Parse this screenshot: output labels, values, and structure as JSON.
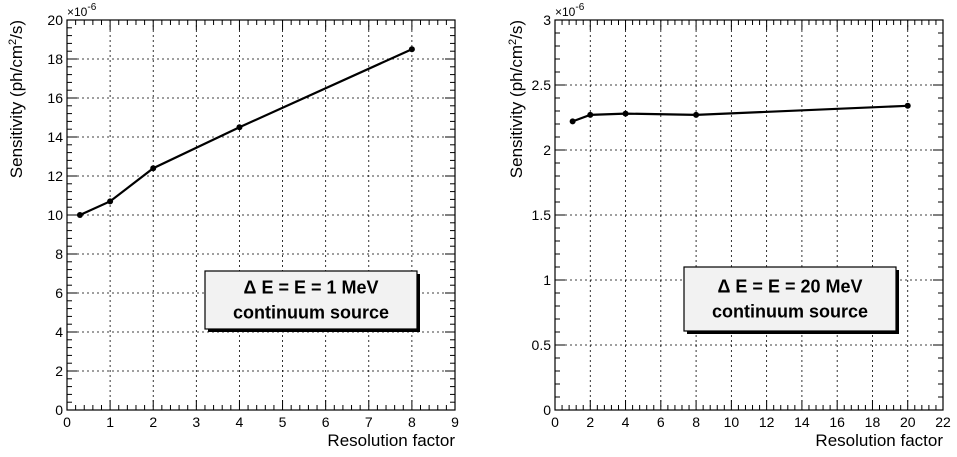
{
  "chart_data": [
    {
      "type": "line",
      "title": "",
      "xlabel": "Resolution factor",
      "ylabel_parts": [
        "Sensitivity (ph/cm",
        "2",
        "/s)"
      ],
      "y_multiplier": [
        "×10",
        "-6"
      ],
      "xlim": [
        0,
        9
      ],
      "ylim": [
        0,
        20
      ],
      "x_ticks": [
        0,
        1,
        2,
        3,
        4,
        5,
        6,
        7,
        8,
        9
      ],
      "y_ticks": [
        0,
        2,
        4,
        6,
        8,
        10,
        12,
        14,
        16,
        18,
        20
      ],
      "grid": true,
      "series": [
        {
          "x": [
            0.3,
            1,
            2,
            4,
            8
          ],
          "y": [
            10.0,
            10.7,
            12.4,
            14.5,
            18.5
          ]
        }
      ],
      "annotation": {
        "lines": [
          "Δ E = E = 1 MeV",
          "continuum source"
        ]
      }
    },
    {
      "type": "line",
      "title": "",
      "xlabel": "Resolution factor",
      "ylabel_parts": [
        "Sensitivity (ph/cm",
        "2",
        "/s)"
      ],
      "y_multiplier": [
        "×10",
        "-6"
      ],
      "xlim": [
        0,
        22
      ],
      "ylim": [
        0,
        3
      ],
      "x_ticks": [
        0,
        2,
        4,
        6,
        8,
        10,
        12,
        14,
        16,
        18,
        20,
        22
      ],
      "y_ticks": [
        0,
        0.5,
        1,
        1.5,
        2,
        2.5,
        3
      ],
      "grid": true,
      "series": [
        {
          "x": [
            1,
            2,
            4,
            8,
            20
          ],
          "y": [
            2.22,
            2.27,
            2.28,
            2.27,
            2.34
          ]
        }
      ],
      "annotation": {
        "lines": [
          "Δ E = E = 20 MeV",
          "continuum source"
        ]
      }
    }
  ]
}
